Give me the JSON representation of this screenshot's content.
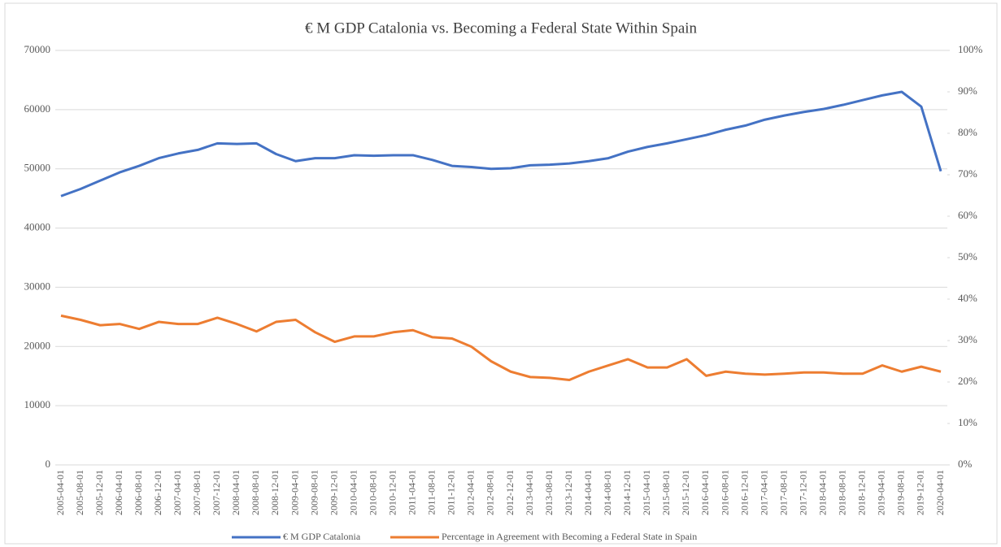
{
  "chart_data": {
    "type": "line",
    "title": "€ M GDP Catalonia vs. Becoming a Federal State Within Spain",
    "categories": [
      "2005-04-01",
      "2005-08-01",
      "2005-12-01",
      "2006-04-01",
      "2006-08-01",
      "2006-12-01",
      "2007-04-01",
      "2007-08-01",
      "2007-12-01",
      "2008-04-01",
      "2008-08-01",
      "2008-12-01",
      "2009-04-01",
      "2009-08-01",
      "2009-12-01",
      "2010-04-01",
      "2010-08-01",
      "2010-12-01",
      "2011-04-01",
      "2011-08-01",
      "2011-12-01",
      "2012-04-01",
      "2012-08-01",
      "2012-12-01",
      "2013-04-01",
      "2013-08-01",
      "2013-12-01",
      "2014-04-01",
      "2014-08-01",
      "2014-12-01",
      "2015-04-01",
      "2015-08-01",
      "2015-12-01",
      "2016-04-01",
      "2016-08-01",
      "2016-12-01",
      "2017-04-01",
      "2017-08-01",
      "2017-12-01",
      "2018-04-01",
      "2018-08-01",
      "2018-12-01",
      "2019-04-01",
      "2019-08-01",
      "2019-12-01",
      "2020-04-01"
    ],
    "series": [
      {
        "name": "€ M GDP Catalonia",
        "color": "#4472c4",
        "values": [
          45400,
          46600,
          48000,
          49400,
          50500,
          51800,
          52600,
          53200,
          54300,
          54200,
          54300,
          52500,
          51300,
          51800,
          51800,
          52300,
          52200,
          52300,
          52300,
          51500,
          50500,
          50300,
          50000,
          50100,
          50600,
          50700,
          50900,
          51300,
          51800,
          52900,
          53700,
          54300,
          55000,
          55700,
          56600,
          57300,
          58300,
          59000,
          59600,
          60100,
          60800,
          61600,
          62400,
          63000,
          60500,
          49600
        ]
      },
      {
        "name": "Percentage in Agreement with Becoming a Federal State in Spain",
        "color": "#ed7d31",
        "axis": "y2",
        "values": [
          36,
          35,
          33.7,
          34,
          32.8,
          34.5,
          34,
          34,
          35.5,
          34,
          32.2,
          34.5,
          35,
          32,
          29.7,
          31,
          31,
          32,
          32.5,
          30.8,
          30.5,
          28.5,
          25,
          22.5,
          21.2,
          21,
          20.5,
          22.5,
          24,
          25.5,
          23.5,
          23.5,
          25.5,
          21.5,
          22.5,
          22,
          21.8,
          22,
          22.3,
          22.3,
          22,
          22,
          24,
          22.5,
          23.7,
          22.5
        ]
      }
    ],
    "ylim": [
      0,
      70000
    ],
    "yticks": [
      0,
      10000,
      20000,
      30000,
      40000,
      50000,
      60000,
      70000
    ],
    "y2lim": [
      0,
      100
    ],
    "y2ticks": [
      {
        "value": 0,
        "label": "0%"
      },
      {
        "value": 10,
        "label": "10%"
      },
      {
        "value": 20,
        "label": "20%"
      },
      {
        "value": 30,
        "label": "30%"
      },
      {
        "value": 40,
        "label": "40%"
      },
      {
        "value": 50,
        "label": "50%"
      },
      {
        "value": 60,
        "label": "60%"
      },
      {
        "value": 70,
        "label": "70%"
      },
      {
        "value": 80,
        "label": "80%"
      },
      {
        "value": 90,
        "label": "90%"
      },
      {
        "value": 100,
        "label": "100%"
      }
    ],
    "grid": true,
    "legend": "bottom"
  }
}
